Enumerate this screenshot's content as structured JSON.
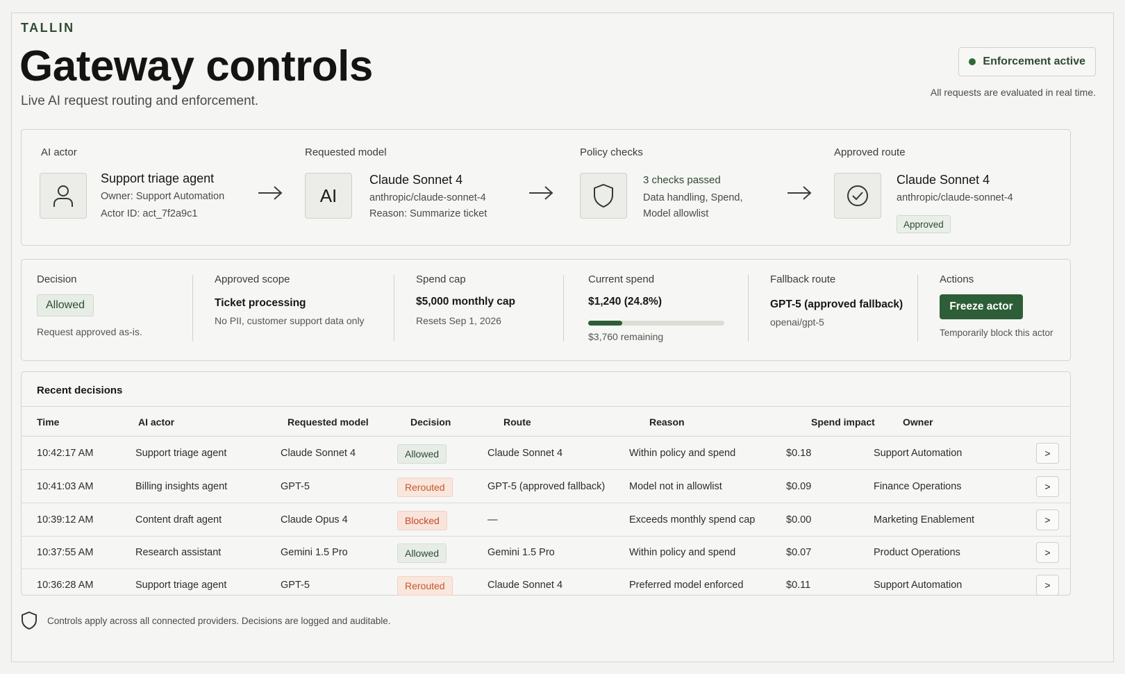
{
  "header": {
    "brand": "TALLIN",
    "title": "Gateway controls",
    "subtitle": "Live AI request routing and enforcement.",
    "status_label": "Enforcement active",
    "status_note": "All requests are evaluated in real time."
  },
  "flow": {
    "actor": {
      "label": "AI actor",
      "icon": "user-icon",
      "name": "Support triage agent",
      "owner": "Owner: Support Automation",
      "actor_id": "Actor ID: act_7f2a9c1"
    },
    "requested": {
      "label": "Requested model",
      "tile_text": "AI",
      "name": "Claude Sonnet 4",
      "model_id": "anthropic/claude-sonnet-4",
      "reason": "Reason: Summarize ticket"
    },
    "policy": {
      "label": "Policy checks",
      "icon": "shield-icon",
      "result": "3 checks passed",
      "line1": "Data handling, Spend,",
      "line2": "Model allowlist"
    },
    "route": {
      "label": "Approved route",
      "icon": "check-circle-icon",
      "name": "Claude Sonnet 4",
      "model_id": "anthropic/claude-sonnet-4",
      "tag": "Approved"
    }
  },
  "summary": {
    "decision": {
      "label": "Decision",
      "value": "Allowed",
      "note": "Request approved as-is."
    },
    "scope": {
      "label": "Approved scope",
      "value": "Ticket processing",
      "note": "No PII, customer support data only"
    },
    "spend_cap": {
      "label": "Spend cap",
      "value": "$5,000 monthly cap",
      "note": "Resets Sep 1, 2026"
    },
    "current_spend": {
      "label": "Current spend",
      "value": "$1,240 (24.8%)",
      "progress": 0.248,
      "note": "$3,760 remaining"
    },
    "fallback": {
      "label": "Fallback route",
      "value": "GPT-5 (approved fallback)",
      "note": "openai/gpt-5"
    },
    "actions": {
      "label": "Actions",
      "button": "Freeze actor",
      "note": "Temporarily block this actor"
    }
  },
  "table": {
    "title": "Recent decisions",
    "columns": [
      "Time",
      "AI actor",
      "Requested model",
      "Decision",
      "Route",
      "Reason",
      "Spend impact",
      "Owner"
    ],
    "rows": [
      {
        "time": "10:42:17 AM",
        "actor": "Support triage agent",
        "model": "Claude Sonnet 4",
        "decision": "Allowed",
        "route": "Claude Sonnet 4",
        "reason": "Within policy and spend",
        "spend": "$0.18",
        "owner": "Support Automation"
      },
      {
        "time": "10:41:03 AM",
        "actor": "Billing insights agent",
        "model": "GPT-5",
        "decision": "Rerouted",
        "route": "GPT-5 (approved fallback)",
        "reason": "Model not in allowlist",
        "spend": "$0.09",
        "owner": "Finance Operations"
      },
      {
        "time": "10:39:12 AM",
        "actor": "Content draft agent",
        "model": "Claude Opus 4",
        "decision": "Blocked",
        "route": "—",
        "reason": "Exceeds monthly spend cap",
        "spend": "$0.00",
        "owner": "Marketing Enablement"
      },
      {
        "time": "10:37:55 AM",
        "actor": "Research assistant",
        "model": "Gemini 1.5 Pro",
        "decision": "Allowed",
        "route": "Gemini 1.5 Pro",
        "reason": "Within policy and spend",
        "spend": "$0.07",
        "owner": "Product Operations"
      },
      {
        "time": "10:36:28 AM",
        "actor": "Support triage agent",
        "model": "GPT-5",
        "decision": "Rerouted",
        "route": "Claude Sonnet 4",
        "reason": "Preferred model enforced",
        "spend": "$0.11",
        "owner": "Support Automation"
      }
    ],
    "row_button": ">"
  },
  "footer": {
    "icon": "shield-icon",
    "text": "Controls apply across all connected providers. Decisions are logged and auditable."
  },
  "colors": {
    "accent": "#2d5e37",
    "allowed_bg": "#e7ede6",
    "rerouted_text": "#c2582b",
    "blocked_text": "#c04a26"
  }
}
